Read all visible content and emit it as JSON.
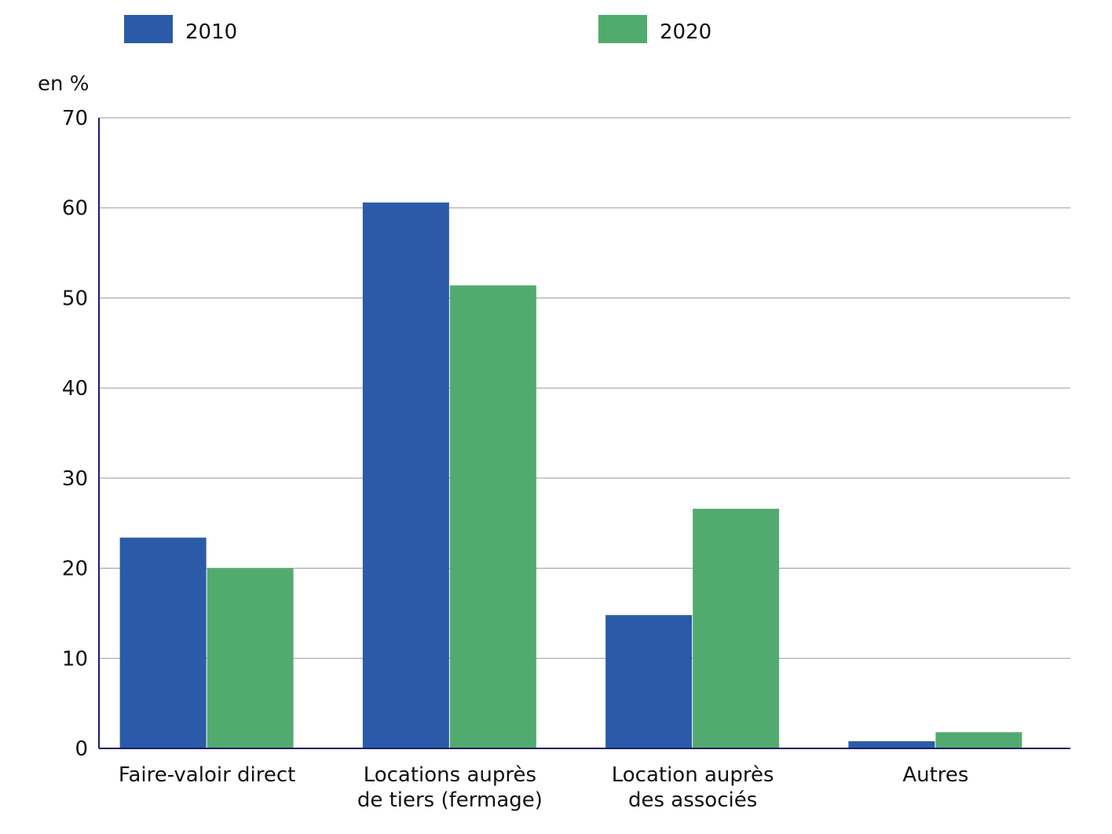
{
  "chart_data": {
    "type": "bar",
    "categories": [
      [
        "Faire-valoir direct"
      ],
      [
        "Locations auprès",
        "de tiers (fermage)"
      ],
      [
        "Location auprès",
        "des associés"
      ],
      [
        "Autres"
      ]
    ],
    "series": [
      {
        "name": "2010",
        "values": [
          23.4,
          60.6,
          14.8,
          0.8
        ],
        "color": "#2b5ba8"
      },
      {
        "name": "2020",
        "values": [
          20.0,
          51.4,
          26.6,
          1.8
        ],
        "color": "#52ab6e"
      }
    ],
    "ylabel": "en %",
    "ylim": [
      0,
      70
    ],
    "yticks": [
      0,
      10,
      20,
      30,
      40,
      50,
      60,
      70
    ],
    "grid": true,
    "legend_position": "top"
  }
}
